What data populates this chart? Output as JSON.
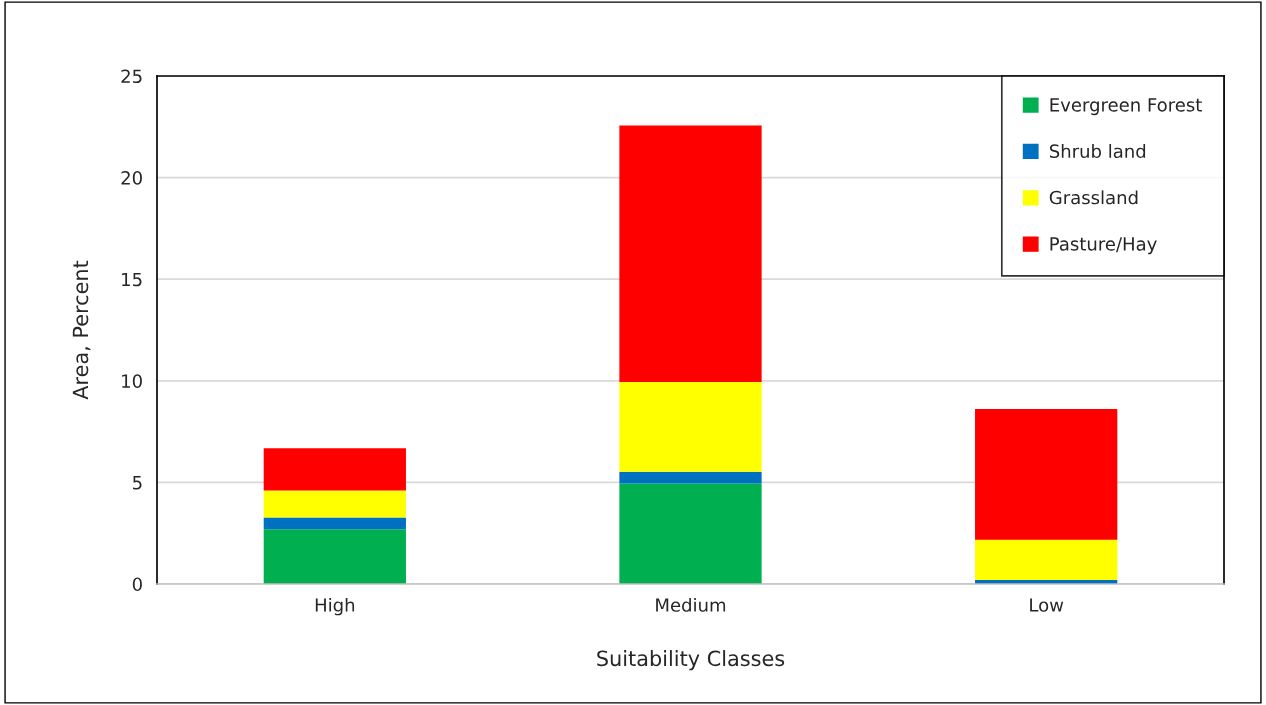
{
  "chart_data": {
    "type": "bar",
    "stacked": true,
    "categories": [
      "High",
      "Medium",
      "Low"
    ],
    "xlabel": "Suitability Classes",
    "ylabel": "Area, Percent",
    "series": [
      {
        "name": "Evergreen Forest",
        "color": "#00b050",
        "values": [
          2.69,
          4.94,
          0
        ]
      },
      {
        "name": "Shrub land",
        "color": "#0070c0",
        "values": [
          0.58,
          0.59,
          0.2
        ]
      },
      {
        "name": "Grassland",
        "color": "#ffff00",
        "values": [
          1.33,
          4.41,
          1.98
        ]
      },
      {
        "name": "Pasture/Hay",
        "color": "#ff0000",
        "values": [
          2.08,
          12.62,
          6.43
        ]
      }
    ],
    "ylim": [
      0,
      25
    ],
    "yticks": [
      0,
      5,
      10,
      15,
      20,
      25
    ],
    "grid": "y",
    "legend": "top right"
  }
}
